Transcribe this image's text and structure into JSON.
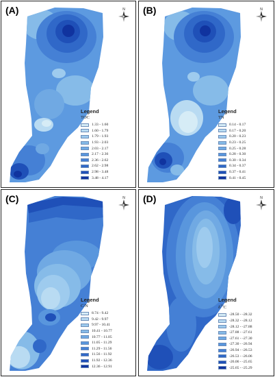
{
  "panels": [
    {
      "label": "(A)",
      "legend_title": "Legend",
      "variable": "TOC",
      "ranges": [
        "1.33 - 1.60",
        "1.60 - 1.79",
        "1.79 - 1.93",
        "1.93 - 2.03",
        "2.03 - 2.17",
        "2.17 - 2.36",
        "2.36 - 2.62",
        "2.62 - 2.98",
        "2.98 - 3.48",
        "3.48 - 4.17"
      ],
      "colors": [
        "#d6ecf6",
        "#b9dbf2",
        "#9ecbee",
        "#86bbe8",
        "#70a9e3",
        "#5996dd",
        "#4580d5",
        "#3068c8",
        "#1f50b8",
        "#10339f"
      ]
    },
    {
      "label": "(B)",
      "legend_title": "Legend",
      "variable": "TN",
      "ranges": [
        "0.14 - 0.17",
        "0.17 - 0.20",
        "0.20 - 0.23",
        "0.23 - 0.25",
        "0.25 - 0.28",
        "0.28 - 0.30",
        "0.30 - 0.34",
        "0.34 - 0.37",
        "0.37 - 0.41",
        "0.41 - 0.45"
      ],
      "colors": [
        "#d6ecf6",
        "#b9dbf2",
        "#9ecbee",
        "#86bbe8",
        "#70a9e3",
        "#5996dd",
        "#4580d5",
        "#3068c8",
        "#1f50b8",
        "#10339f"
      ]
    },
    {
      "label": "(C)",
      "legend_title": "Legend",
      "variable": "C/N",
      "ranges": [
        "8.74 - 9.42",
        "9.42 - 9.97",
        "9.97 - 10.41",
        "10.41 - 10.77",
        "10.77 - 11.05",
        "11.05 - 11.29",
        "11.29 - 11.56",
        "11.56 - 11.92",
        "11.92 - 12.36",
        "12.36 - 12.91"
      ],
      "colors": [
        "#d6ecf6",
        "#b9dbf2",
        "#9ecbee",
        "#86bbe8",
        "#70a9e3",
        "#5996dd",
        "#4580d5",
        "#3068c8",
        "#1f50b8",
        "#10339f"
      ]
    },
    {
      "label": "(D)",
      "legend_title": "Legend",
      "variable": "δ13C",
      "ranges": [
        "-28.50 - -28.32",
        "-28.32 - -28.12",
        "-28.12 - -27.88",
        "-27.88 - -27.61",
        "-27.61 - -27.30",
        "-27.30 - -26.94",
        "-26.94 - -26.53",
        "-26.53 - -26.06",
        "-26.06 - -25.65",
        "-25.65 - -25.29"
      ],
      "colors": [
        "#d6ecf6",
        "#b9dbf2",
        "#9ecbee",
        "#86bbe8",
        "#70a9e3",
        "#5996dd",
        "#4580d5",
        "#3068c8",
        "#1f50b8",
        "#10339f"
      ]
    }
  ],
  "compass": {
    "north_label": "N"
  }
}
